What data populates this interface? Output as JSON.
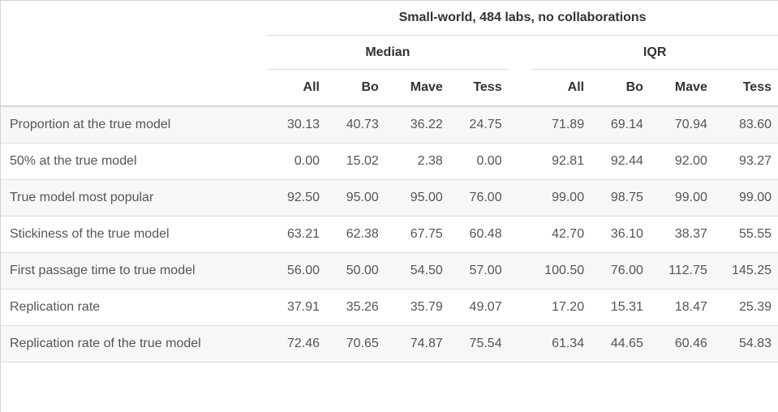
{
  "table": {
    "title": "Small-world, 484 labs, no collaborations",
    "groups": [
      "Median",
      "IQR"
    ],
    "columns": {
      "median": [
        "All",
        "Bo",
        "Mave",
        "Tess"
      ],
      "iqr": [
        "All",
        "Bo",
        "Mave",
        "Tess"
      ]
    },
    "rows": [
      {
        "label": "Proportion at the true model",
        "median": [
          "30.13",
          "40.73",
          "36.22",
          "24.75"
        ],
        "iqr": [
          "71.89",
          "69.14",
          "70.94",
          "83.60"
        ]
      },
      {
        "label": "50% at the true model",
        "median": [
          "0.00",
          "15.02",
          "2.38",
          "0.00"
        ],
        "iqr": [
          "92.81",
          "92.44",
          "92.00",
          "93.27"
        ]
      },
      {
        "label": "True model most popular",
        "median": [
          "92.50",
          "95.00",
          "95.00",
          "76.00"
        ],
        "iqr": [
          "99.00",
          "98.75",
          "99.00",
          "99.00"
        ]
      },
      {
        "label": "Stickiness of the true model",
        "median": [
          "63.21",
          "62.38",
          "67.75",
          "60.48"
        ],
        "iqr": [
          "42.70",
          "36.10",
          "38.37",
          "55.55"
        ]
      },
      {
        "label": "First passage time to true model",
        "median": [
          "56.00",
          "50.00",
          "54.50",
          "57.00"
        ],
        "iqr": [
          "100.50",
          "76.00",
          "112.75",
          "145.25"
        ]
      },
      {
        "label": "Replication rate",
        "median": [
          "37.91",
          "35.26",
          "35.79",
          "49.07"
        ],
        "iqr": [
          "17.20",
          "15.31",
          "18.47",
          "25.39"
        ]
      },
      {
        "label": "Replication rate of the true model",
        "median": [
          "72.46",
          "70.65",
          "74.87",
          "75.54"
        ],
        "iqr": [
          "61.34",
          "44.65",
          "60.46",
          "54.83"
        ]
      }
    ]
  }
}
